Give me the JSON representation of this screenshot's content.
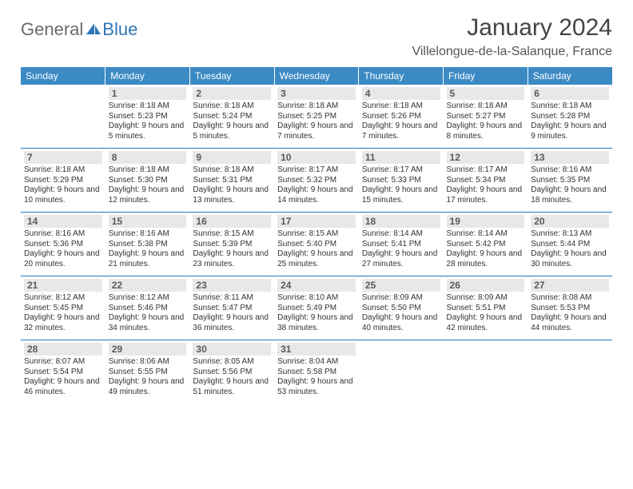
{
  "logo": {
    "part1": "General",
    "part2": "Blue"
  },
  "header": {
    "month_title": "January 2024",
    "location": "Villelongue-de-la-Salanque, France"
  },
  "colors": {
    "header_bg": "#3b8ac4",
    "header_text": "#ffffff",
    "row_border": "#2f74b5",
    "daynum_bg": "#e8e8e8",
    "logo_general": "#6b6b6b",
    "logo_blue": "#2f74b5"
  },
  "day_headers": [
    "Sunday",
    "Monday",
    "Tuesday",
    "Wednesday",
    "Thursday",
    "Friday",
    "Saturday"
  ],
  "weeks": [
    [
      {},
      {
        "num": "1",
        "sunrise": "Sunrise: 8:18 AM",
        "sunset": "Sunset: 5:23 PM",
        "daylight": "Daylight: 9 hours and 5 minutes."
      },
      {
        "num": "2",
        "sunrise": "Sunrise: 8:18 AM",
        "sunset": "Sunset: 5:24 PM",
        "daylight": "Daylight: 9 hours and 5 minutes."
      },
      {
        "num": "3",
        "sunrise": "Sunrise: 8:18 AM",
        "sunset": "Sunset: 5:25 PM",
        "daylight": "Daylight: 9 hours and 7 minutes."
      },
      {
        "num": "4",
        "sunrise": "Sunrise: 8:18 AM",
        "sunset": "Sunset: 5:26 PM",
        "daylight": "Daylight: 9 hours and 7 minutes."
      },
      {
        "num": "5",
        "sunrise": "Sunrise: 8:18 AM",
        "sunset": "Sunset: 5:27 PM",
        "daylight": "Daylight: 9 hours and 8 minutes."
      },
      {
        "num": "6",
        "sunrise": "Sunrise: 8:18 AM",
        "sunset": "Sunset: 5:28 PM",
        "daylight": "Daylight: 9 hours and 9 minutes."
      }
    ],
    [
      {
        "num": "7",
        "sunrise": "Sunrise: 8:18 AM",
        "sunset": "Sunset: 5:29 PM",
        "daylight": "Daylight: 9 hours and 10 minutes."
      },
      {
        "num": "8",
        "sunrise": "Sunrise: 8:18 AM",
        "sunset": "Sunset: 5:30 PM",
        "daylight": "Daylight: 9 hours and 12 minutes."
      },
      {
        "num": "9",
        "sunrise": "Sunrise: 8:18 AM",
        "sunset": "Sunset: 5:31 PM",
        "daylight": "Daylight: 9 hours and 13 minutes."
      },
      {
        "num": "10",
        "sunrise": "Sunrise: 8:17 AM",
        "sunset": "Sunset: 5:32 PM",
        "daylight": "Daylight: 9 hours and 14 minutes."
      },
      {
        "num": "11",
        "sunrise": "Sunrise: 8:17 AM",
        "sunset": "Sunset: 5:33 PM",
        "daylight": "Daylight: 9 hours and 15 minutes."
      },
      {
        "num": "12",
        "sunrise": "Sunrise: 8:17 AM",
        "sunset": "Sunset: 5:34 PM",
        "daylight": "Daylight: 9 hours and 17 minutes."
      },
      {
        "num": "13",
        "sunrise": "Sunrise: 8:16 AM",
        "sunset": "Sunset: 5:35 PM",
        "daylight": "Daylight: 9 hours and 18 minutes."
      }
    ],
    [
      {
        "num": "14",
        "sunrise": "Sunrise: 8:16 AM",
        "sunset": "Sunset: 5:36 PM",
        "daylight": "Daylight: 9 hours and 20 minutes."
      },
      {
        "num": "15",
        "sunrise": "Sunrise: 8:16 AM",
        "sunset": "Sunset: 5:38 PM",
        "daylight": "Daylight: 9 hours and 21 minutes."
      },
      {
        "num": "16",
        "sunrise": "Sunrise: 8:15 AM",
        "sunset": "Sunset: 5:39 PM",
        "daylight": "Daylight: 9 hours and 23 minutes."
      },
      {
        "num": "17",
        "sunrise": "Sunrise: 8:15 AM",
        "sunset": "Sunset: 5:40 PM",
        "daylight": "Daylight: 9 hours and 25 minutes."
      },
      {
        "num": "18",
        "sunrise": "Sunrise: 8:14 AM",
        "sunset": "Sunset: 5:41 PM",
        "daylight": "Daylight: 9 hours and 27 minutes."
      },
      {
        "num": "19",
        "sunrise": "Sunrise: 8:14 AM",
        "sunset": "Sunset: 5:42 PM",
        "daylight": "Daylight: 9 hours and 28 minutes."
      },
      {
        "num": "20",
        "sunrise": "Sunrise: 8:13 AM",
        "sunset": "Sunset: 5:44 PM",
        "daylight": "Daylight: 9 hours and 30 minutes."
      }
    ],
    [
      {
        "num": "21",
        "sunrise": "Sunrise: 8:12 AM",
        "sunset": "Sunset: 5:45 PM",
        "daylight": "Daylight: 9 hours and 32 minutes."
      },
      {
        "num": "22",
        "sunrise": "Sunrise: 8:12 AM",
        "sunset": "Sunset: 5:46 PM",
        "daylight": "Daylight: 9 hours and 34 minutes."
      },
      {
        "num": "23",
        "sunrise": "Sunrise: 8:11 AM",
        "sunset": "Sunset: 5:47 PM",
        "daylight": "Daylight: 9 hours and 36 minutes."
      },
      {
        "num": "24",
        "sunrise": "Sunrise: 8:10 AM",
        "sunset": "Sunset: 5:49 PM",
        "daylight": "Daylight: 9 hours and 38 minutes."
      },
      {
        "num": "25",
        "sunrise": "Sunrise: 8:09 AM",
        "sunset": "Sunset: 5:50 PM",
        "daylight": "Daylight: 9 hours and 40 minutes."
      },
      {
        "num": "26",
        "sunrise": "Sunrise: 8:09 AM",
        "sunset": "Sunset: 5:51 PM",
        "daylight": "Daylight: 9 hours and 42 minutes."
      },
      {
        "num": "27",
        "sunrise": "Sunrise: 8:08 AM",
        "sunset": "Sunset: 5:53 PM",
        "daylight": "Daylight: 9 hours and 44 minutes."
      }
    ],
    [
      {
        "num": "28",
        "sunrise": "Sunrise: 8:07 AM",
        "sunset": "Sunset: 5:54 PM",
        "daylight": "Daylight: 9 hours and 46 minutes."
      },
      {
        "num": "29",
        "sunrise": "Sunrise: 8:06 AM",
        "sunset": "Sunset: 5:55 PM",
        "daylight": "Daylight: 9 hours and 49 minutes."
      },
      {
        "num": "30",
        "sunrise": "Sunrise: 8:05 AM",
        "sunset": "Sunset: 5:56 PM",
        "daylight": "Daylight: 9 hours and 51 minutes."
      },
      {
        "num": "31",
        "sunrise": "Sunrise: 8:04 AM",
        "sunset": "Sunset: 5:58 PM",
        "daylight": "Daylight: 9 hours and 53 minutes."
      },
      {},
      {},
      {}
    ]
  ]
}
